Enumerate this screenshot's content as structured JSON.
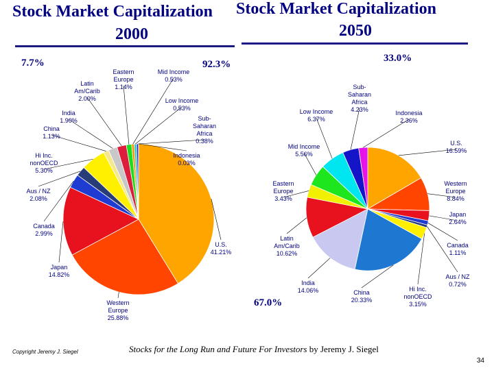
{
  "slide": {
    "footer_copyright": "Copyright Jeremy J. Siegel",
    "footer_book": "Stocks for the Long Run and Future For Investors",
    "footer_author": " by Jeremy J. Siegel",
    "page_number": "34"
  },
  "left": {
    "title_line1": "Stock Market Capitalization",
    "title_line2": "2000",
    "pct_top": "7.7%",
    "pct_right": "92.3%"
  },
  "right": {
    "title_line1": "Stock Market Capitalization",
    "title_line2": "2050",
    "pct_top": "33.0%",
    "pct_bottom": "67.0%"
  },
  "chart_data": [
    {
      "type": "pie",
      "title": "Stock Market Capitalization 2000",
      "slices": [
        {
          "label": "U.S.",
          "value": 41.21,
          "color": "#FFA500"
        },
        {
          "label": "Western Europe",
          "value": 25.88,
          "color": "#FF4500"
        },
        {
          "label": "Japan",
          "value": 14.82,
          "color": "#E8121E"
        },
        {
          "label": "Canada",
          "value": 2.99,
          "color": "#1E3CD2"
        },
        {
          "label": "Aus / NZ",
          "value": 2.08,
          "color": "#283C78"
        },
        {
          "label": "Hi Inc. nonOECD",
          "value": 5.3,
          "color": "#FFF000"
        },
        {
          "label": "China",
          "value": 1.13,
          "color": "#F5E88C"
        },
        {
          "label": "India",
          "value": 1.9,
          "color": "#C8C8C8"
        },
        {
          "label": "Latin Am/Carib",
          "value": 2.0,
          "color": "#DC1E3C"
        },
        {
          "label": "Eastern Europe",
          "value": 1.14,
          "color": "#1EDC1E"
        },
        {
          "label": "Mid Income",
          "value": 0.53,
          "color": "#FF8C00"
        },
        {
          "label": "Low Income",
          "value": 0.53,
          "color": "#32C8C8"
        },
        {
          "label": "Sub-Saharan Africa",
          "value": 0.38,
          "color": "#1414C8"
        },
        {
          "label": "Indonesia",
          "value": 0.03,
          "color": "#DC14DC"
        }
      ]
    },
    {
      "type": "pie",
      "title": "Stock Market Capitalization 2050",
      "slices": [
        {
          "label": "U.S.",
          "value": 16.59,
          "color": "#FFA500"
        },
        {
          "label": "Western Europe",
          "value": 8.84,
          "color": "#FF4500"
        },
        {
          "label": "Japan",
          "value": 2.64,
          "color": "#E8121E"
        },
        {
          "label": "Canada",
          "value": 1.11,
          "color": "#1E3CD2"
        },
        {
          "label": "Aus / NZ",
          "value": 0.72,
          "color": "#283C78"
        },
        {
          "label": "Hi Inc. nonOECD",
          "value": 3.15,
          "color": "#FFF000"
        },
        {
          "label": "China",
          "value": 20.33,
          "color": "#1E78D2"
        },
        {
          "label": "India",
          "value": 14.06,
          "color": "#C8C8F0"
        },
        {
          "label": "Latin Am/Carib",
          "value": 10.62,
          "color": "#E8121E"
        },
        {
          "label": "Eastern Europe",
          "value": 3.43,
          "color": "#F0F000"
        },
        {
          "label": "Mid Income",
          "value": 5.56,
          "color": "#1EE61E"
        },
        {
          "label": "Low Income",
          "value": 6.37,
          "color": "#00E6F0"
        },
        {
          "label": "Sub-Saharan Africa",
          "value": 4.23,
          "color": "#1414C8"
        },
        {
          "label": "Indonesia",
          "value": 2.36,
          "color": "#E614E6"
        }
      ]
    }
  ]
}
